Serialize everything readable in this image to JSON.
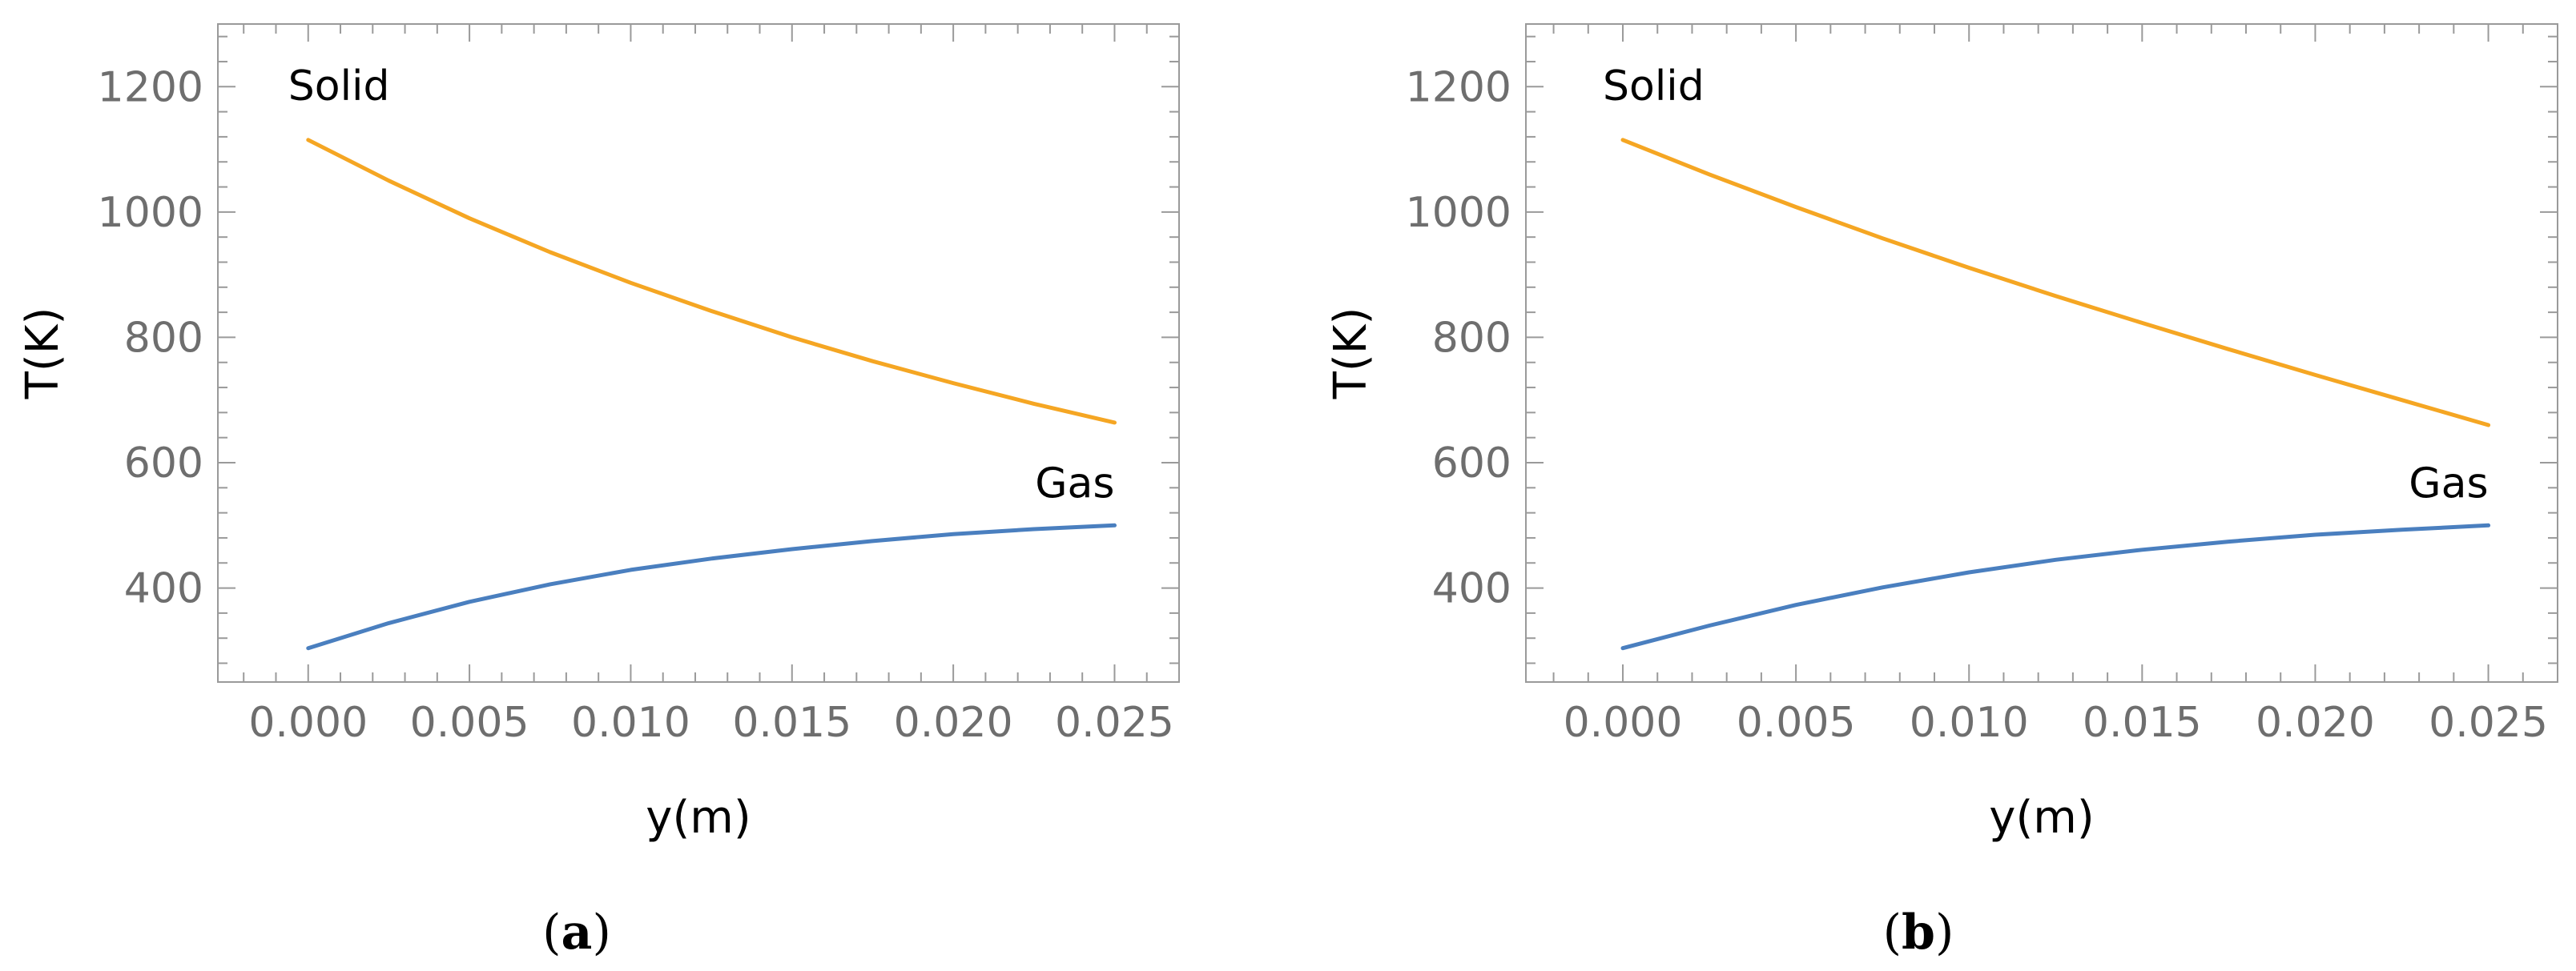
{
  "chart_data": [
    {
      "panel": "a",
      "type": "line",
      "caption": {
        "open": "(",
        "letter": "a",
        "close": ")"
      },
      "xlabel": "y(m)",
      "ylabel": "T(K)",
      "xlim": [
        -0.0028,
        0.027
      ],
      "ylim": [
        250,
        1300
      ],
      "x_ticks": [
        0.0,
        0.005,
        0.01,
        0.015,
        0.02,
        0.025
      ],
      "x_tick_labels": [
        "0.000",
        "0.005",
        "0.010",
        "0.015",
        "0.020",
        "0.025"
      ],
      "y_ticks": [
        400,
        600,
        800,
        1000,
        1200
      ],
      "y_tick_labels": [
        "400",
        "600",
        "800",
        "1000",
        "1200"
      ],
      "series": [
        {
          "name": "Solid",
          "color": "#f5a623",
          "x": [
            0.0,
            0.0025,
            0.005,
            0.0075,
            0.01,
            0.0125,
            0.015,
            0.0175,
            0.02,
            0.0225,
            0.025
          ],
          "values": [
            1115,
            1050,
            990,
            936,
            887,
            842,
            800,
            762,
            727,
            694,
            664
          ]
        },
        {
          "name": "Gas",
          "color": "#4a7fbf",
          "x": [
            0.0,
            0.0025,
            0.005,
            0.0075,
            0.01,
            0.0125,
            0.015,
            0.0175,
            0.02,
            0.0225,
            0.025
          ],
          "values": [
            304,
            344,
            378,
            406,
            429,
            447,
            462,
            475,
            486,
            494,
            500
          ]
        }
      ]
    },
    {
      "panel": "b",
      "type": "line",
      "caption": {
        "open": "(",
        "letter": "b",
        "close": ")"
      },
      "xlabel": "y(m)",
      "ylabel": "T(K)",
      "xlim": [
        -0.0028,
        0.027
      ],
      "ylim": [
        250,
        1300
      ],
      "x_ticks": [
        0.0,
        0.005,
        0.01,
        0.015,
        0.02,
        0.025
      ],
      "x_tick_labels": [
        "0.000",
        "0.005",
        "0.010",
        "0.015",
        "0.020",
        "0.025"
      ],
      "y_ticks": [
        400,
        600,
        800,
        1000,
        1200
      ],
      "y_tick_labels": [
        "400",
        "600",
        "800",
        "1000",
        "1200"
      ],
      "series": [
        {
          "name": "Solid",
          "color": "#f5a623",
          "x": [
            0.0,
            0.0025,
            0.005,
            0.0075,
            0.01,
            0.0125,
            0.015,
            0.0175,
            0.02,
            0.0225,
            0.025
          ],
          "values": [
            1115,
            1060,
            1008,
            958,
            911,
            866,
            823,
            781,
            740,
            700,
            660
          ]
        },
        {
          "name": "Gas",
          "color": "#4a7fbf",
          "x": [
            0.0,
            0.0025,
            0.005,
            0.0075,
            0.01,
            0.0125,
            0.015,
            0.0175,
            0.02,
            0.0225,
            0.025
          ],
          "values": [
            304,
            340,
            373,
            401,
            425,
            445,
            461,
            474,
            485,
            493,
            500
          ]
        }
      ]
    }
  ]
}
